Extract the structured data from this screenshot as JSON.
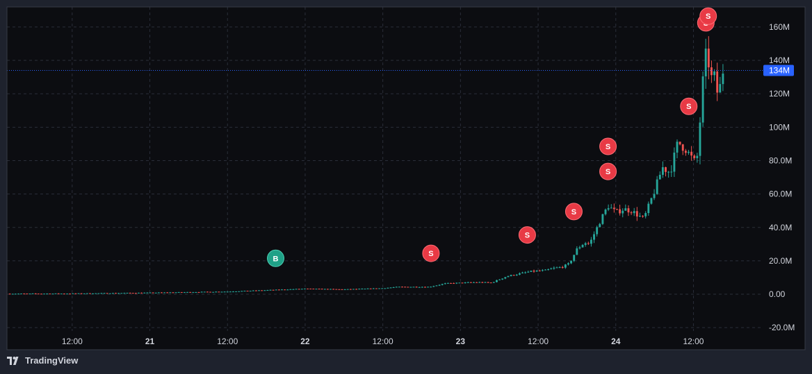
{
  "brand": {
    "name": "TradingView",
    "icon": "tradingview-logo-icon"
  },
  "colors": {
    "background": "#0c0d11",
    "frame": "#1e222d",
    "grid": "#2a2e39",
    "up": "#26a69a",
    "down": "#ef5350",
    "buy": "#1fa187",
    "sell": "#e83a45",
    "last_price": "#2962ff",
    "text": "#d1d4dc"
  },
  "chart_data": {
    "type": "candlestick",
    "grid": true,
    "y_unit": "market cap",
    "y_ticks": [
      "160M",
      "140M",
      "120M",
      "100M",
      "80.0M",
      "60.0M",
      "40.0M",
      "20.0M",
      "0.00",
      "-20.0M"
    ],
    "y_tick_values": [
      160,
      140,
      120,
      100,
      80,
      60,
      40,
      20,
      0,
      -20
    ],
    "ylim": [
      -22,
      172
    ],
    "x_ticks": [
      {
        "label": "12:00",
        "t": 0.5,
        "bold": false
      },
      {
        "label": "21",
        "t": 1.0,
        "bold": true
      },
      {
        "label": "12:00",
        "t": 1.5,
        "bold": false
      },
      {
        "label": "22",
        "t": 2.0,
        "bold": true
      },
      {
        "label": "12:00",
        "t": 2.5,
        "bold": false
      },
      {
        "label": "23",
        "t": 3.0,
        "bold": true
      },
      {
        "label": "12:00",
        "t": 3.5,
        "bold": false
      },
      {
        "label": "24",
        "t": 4.0,
        "bold": true
      },
      {
        "label": "12:00",
        "t": 4.5,
        "bold": false
      }
    ],
    "xlim": [
      0.08,
      4.95
    ],
    "last_price": {
      "value": 134,
      "label": "134M"
    },
    "keypoints": [
      [
        0.08,
        0.3
      ],
      [
        0.5,
        0.4
      ],
      [
        1.0,
        0.9
      ],
      [
        1.5,
        1.6
      ],
      [
        1.8,
        2.6
      ],
      [
        2.0,
        3.3
      ],
      [
        2.25,
        2.9
      ],
      [
        2.5,
        3.6
      ],
      [
        2.6,
        4.4
      ],
      [
        2.8,
        4.4
      ],
      [
        2.9,
        6.4
      ],
      [
        3.1,
        7.2
      ],
      [
        3.2,
        6.9
      ],
      [
        3.3,
        10.8
      ],
      [
        3.45,
        13.6
      ],
      [
        3.55,
        14.3
      ],
      [
        3.6,
        15.6
      ],
      [
        3.65,
        16.2
      ],
      [
        3.7,
        18.2
      ],
      [
        3.75,
        27
      ],
      [
        3.8,
        31
      ],
      [
        3.83,
        30
      ],
      [
        3.9,
        44
      ],
      [
        3.95,
        53
      ],
      [
        4.0,
        49
      ],
      [
        4.05,
        51
      ],
      [
        4.1,
        50
      ],
      [
        4.18,
        45
      ],
      [
        4.25,
        62
      ],
      [
        4.3,
        76
      ],
      [
        4.35,
        73
      ],
      [
        4.4,
        91
      ],
      [
        4.45,
        87
      ],
      [
        4.5,
        80
      ],
      [
        4.52,
        78
      ],
      [
        4.55,
        112
      ],
      [
        4.57,
        140
      ],
      [
        4.59,
        145
      ],
      [
        4.61,
        128
      ],
      [
        4.63,
        132
      ],
      [
        4.66,
        118
      ],
      [
        4.69,
        134
      ]
    ],
    "candles_count": 250,
    "markers": [
      {
        "type": "buy",
        "label": "B",
        "t": 1.81,
        "y": 21.5
      },
      {
        "type": "sell",
        "label": "S",
        "t": 2.81,
        "y": 24.5
      },
      {
        "type": "sell",
        "label": "S",
        "t": 3.43,
        "y": 35.5
      },
      {
        "type": "sell",
        "label": "S",
        "t": 3.73,
        "y": 49.5
      },
      {
        "type": "sell",
        "label": "S",
        "t": 3.95,
        "y": 88.5
      },
      {
        "type": "sell",
        "label": "S",
        "t": 3.95,
        "y": 73.5
      },
      {
        "type": "sell",
        "label": "S",
        "t": 4.47,
        "y": 112.5
      },
      {
        "type": "sell",
        "label": "S",
        "t": 4.58,
        "y": 162.5
      },
      {
        "type": "sell",
        "label": "S",
        "t": 4.595,
        "y": 166.5
      }
    ]
  }
}
